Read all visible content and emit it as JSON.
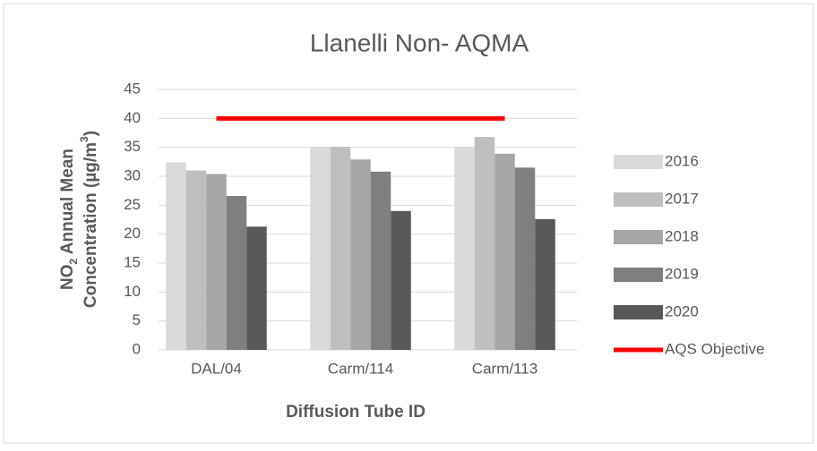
{
  "chart_data": {
    "type": "bar",
    "title": "Llanelli Non- AQMA",
    "x_label": "Diffusion Tube ID",
    "y_label_lines": [
      [
        "NO",
        "2",
        " Annual Mean"
      ],
      [
        "Concentration (µg/m",
        "3",
        ")"
      ]
    ],
    "categories": [
      "DAL/04",
      "Carm/114",
      "Carm/113"
    ],
    "series": [
      {
        "name": "2016",
        "color": "#d9d9d9",
        "values": [
          32.4,
          35.1,
          35.1
        ]
      },
      {
        "name": "2017",
        "color": "#bfbfbf",
        "values": [
          31,
          35.1,
          36.8
        ]
      },
      {
        "name": "2018",
        "color": "#a6a6a6",
        "values": [
          30.4,
          32.9,
          33.9
        ]
      },
      {
        "name": "2019",
        "color": "#7f7f7f",
        "values": [
          26.6,
          30.8,
          31.5
        ]
      },
      {
        "name": "2020",
        "color": "#595959",
        "values": [
          21.3,
          24,
          22.6
        ]
      },
      {
        "name": "AQS Objective",
        "type": "line",
        "color": "#ff0000",
        "values": [
          40,
          40,
          40
        ]
      }
    ],
    "ylim": [
      0,
      45
    ],
    "yticks": [
      0,
      5,
      10,
      15,
      20,
      25,
      30,
      35,
      40,
      45
    ],
    "grid": true,
    "legend": "right"
  }
}
